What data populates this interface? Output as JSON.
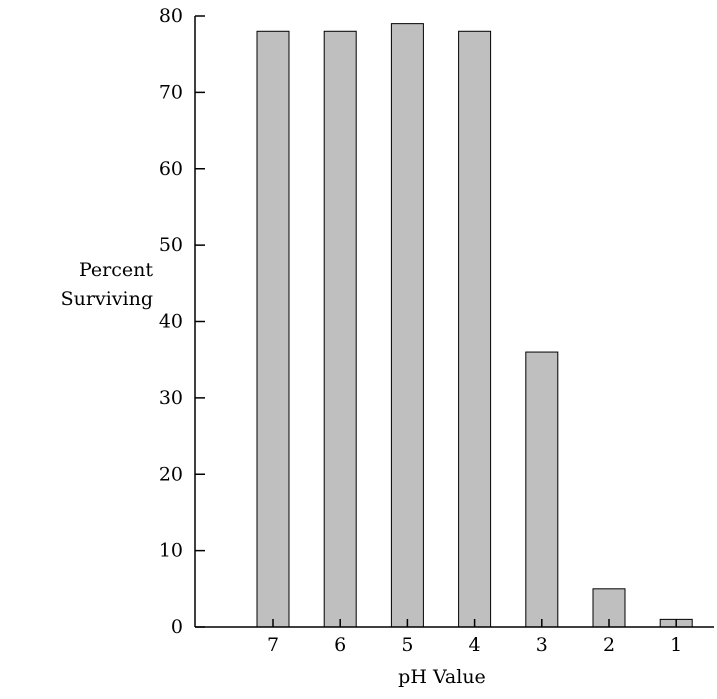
{
  "chart_data": {
    "type": "bar",
    "categories": [
      "7",
      "6",
      "5",
      "4",
      "3",
      "2",
      "1"
    ],
    "values": [
      78,
      78,
      79,
      78,
      36,
      5,
      1
    ],
    "title": "",
    "xlabel": "pH Value",
    "ylabel": [
      "Percent",
      "Surviving"
    ],
    "ylim": [
      0,
      80
    ],
    "yticks": [
      0,
      10,
      20,
      30,
      40,
      50,
      60,
      70,
      80
    ],
    "grid": false,
    "colors": {
      "bar_fill": "#bfbfbf",
      "bar_stroke": "#000000"
    }
  }
}
